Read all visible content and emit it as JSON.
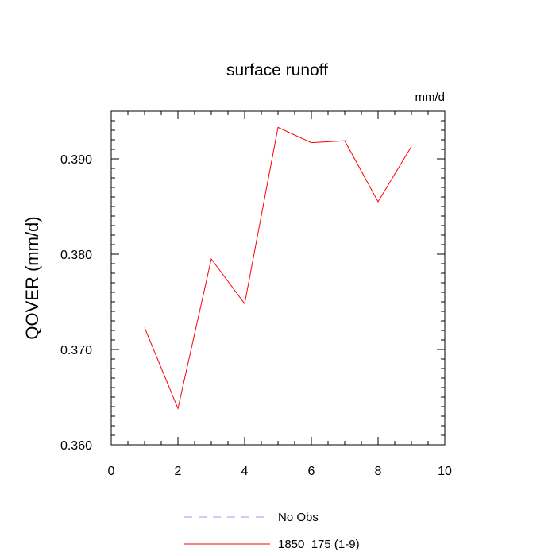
{
  "chart_data": {
    "type": "line",
    "title": "surface runoff",
    "units": "mm/d",
    "xlabel": "",
    "ylabel": "QOVER  (mm/d)",
    "xlim": [
      0,
      10
    ],
    "ylim": [
      0.36,
      0.395
    ],
    "x_ticks": [
      "0",
      "2",
      "4",
      "6",
      "8",
      "10"
    ],
    "y_ticks": [
      "0.360",
      "0.370",
      "0.380",
      "0.390"
    ],
    "grid": false,
    "legend_position": "bottom",
    "series": [
      {
        "name": "No Obs",
        "style": "dashed",
        "color": "#9a9aff",
        "x": [],
        "values": []
      },
      {
        "name": "1850_175 (1-9)",
        "style": "solid",
        "color": "#ff0000",
        "x": [
          1,
          2,
          3,
          4,
          5,
          6,
          7,
          8,
          9
        ],
        "values": [
          0.3723,
          0.3638,
          0.3795,
          0.3748,
          0.3933,
          0.3917,
          0.3919,
          0.3855,
          0.3913
        ]
      }
    ]
  }
}
